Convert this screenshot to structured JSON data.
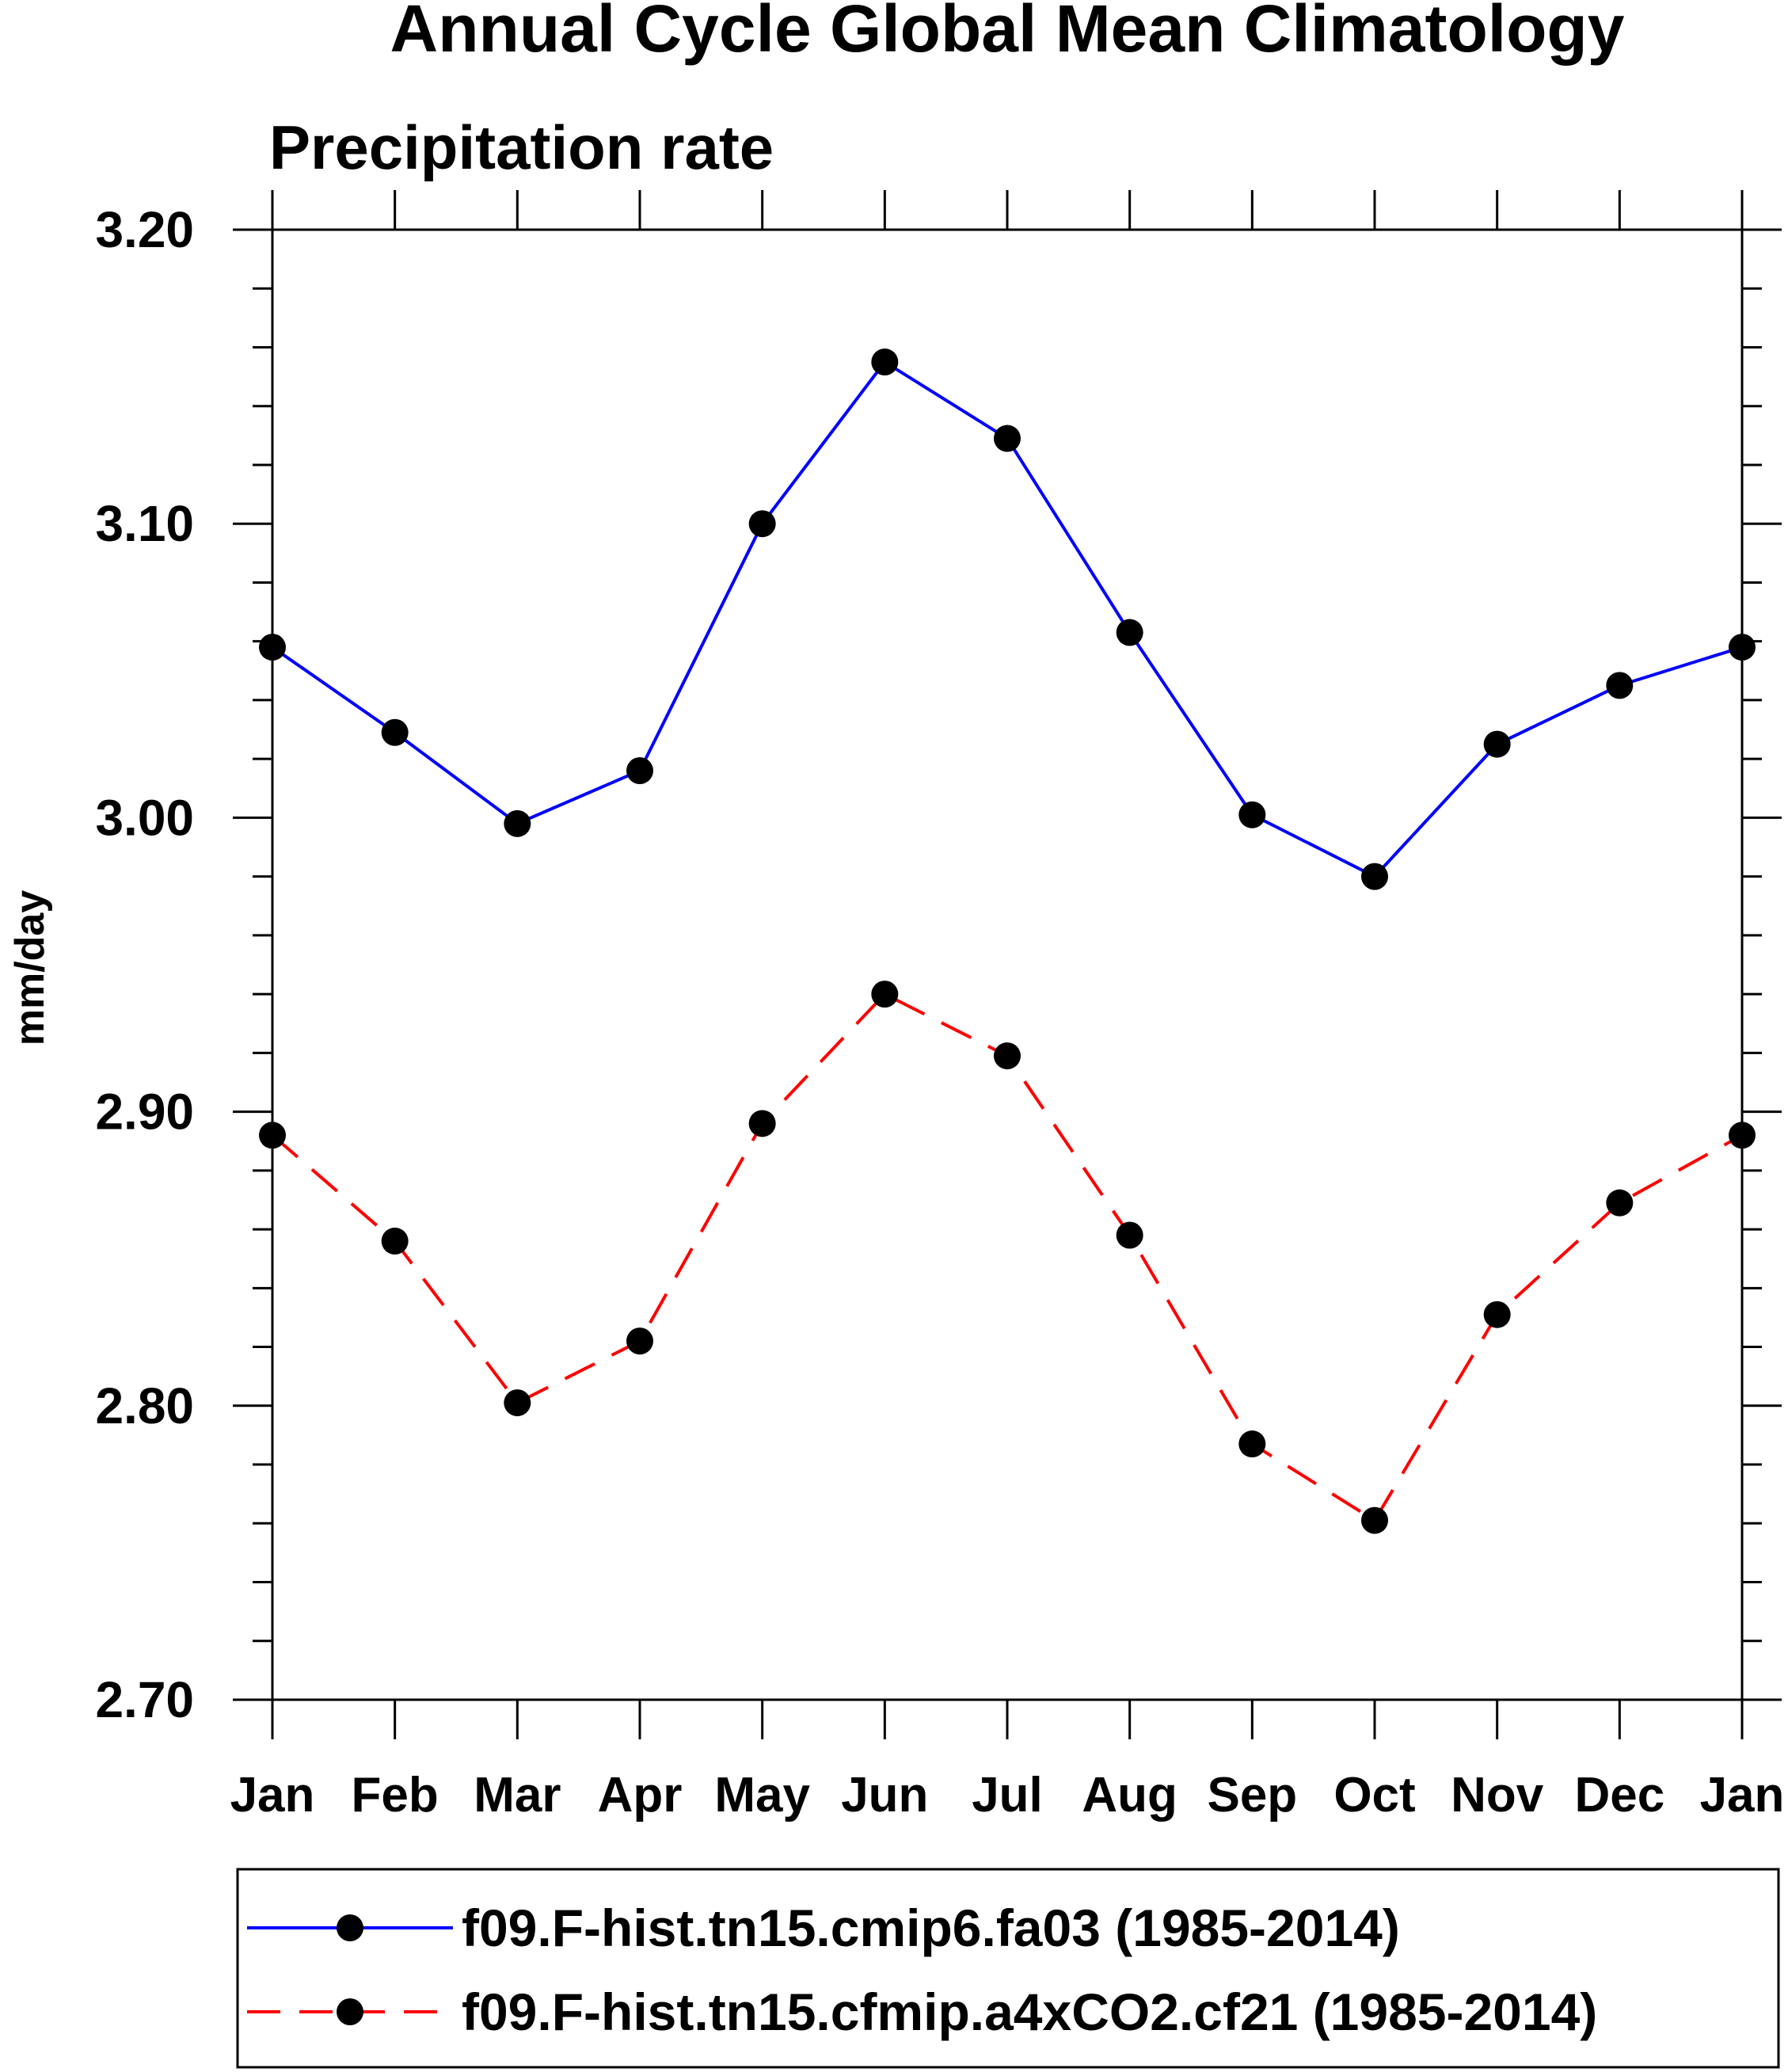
{
  "chart_data": {
    "type": "line",
    "title": "Annual Cycle Global Mean Climatology",
    "subtitle": "Precipitation rate",
    "xlabel": "",
    "ylabel": "mm/day",
    "categories": [
      "Jan",
      "Feb",
      "Mar",
      "Apr",
      "May",
      "Jun",
      "Jul",
      "Aug",
      "Sep",
      "Oct",
      "Nov",
      "Dec",
      "Jan"
    ],
    "ylim": [
      2.7,
      3.2
    ],
    "yticks": [
      "2.70",
      "2.80",
      "2.90",
      "3.00",
      "3.10",
      "3.20"
    ],
    "grid": false,
    "legend_position": "bottom",
    "series": [
      {
        "name": "f09.F-hist.tn15.cmip6.fa03 (1985-2014)",
        "color": "#0000ff",
        "line_style": "solid",
        "marker": "filled-circle",
        "values": [
          3.058,
          3.029,
          2.998,
          3.016,
          3.1,
          3.155,
          3.129,
          3.063,
          3.001,
          2.98,
          3.025,
          3.045,
          3.058
        ]
      },
      {
        "name": "f09.F-hist.tn15.cfmip.a4xCO2.cf21 (1985-2014)",
        "color": "#ff0000",
        "line_style": "dashed",
        "marker": "filled-circle",
        "values": [
          2.892,
          2.856,
          2.801,
          2.822,
          2.896,
          2.94,
          2.919,
          2.858,
          2.787,
          2.761,
          2.831,
          2.869,
          2.892
        ]
      }
    ]
  }
}
